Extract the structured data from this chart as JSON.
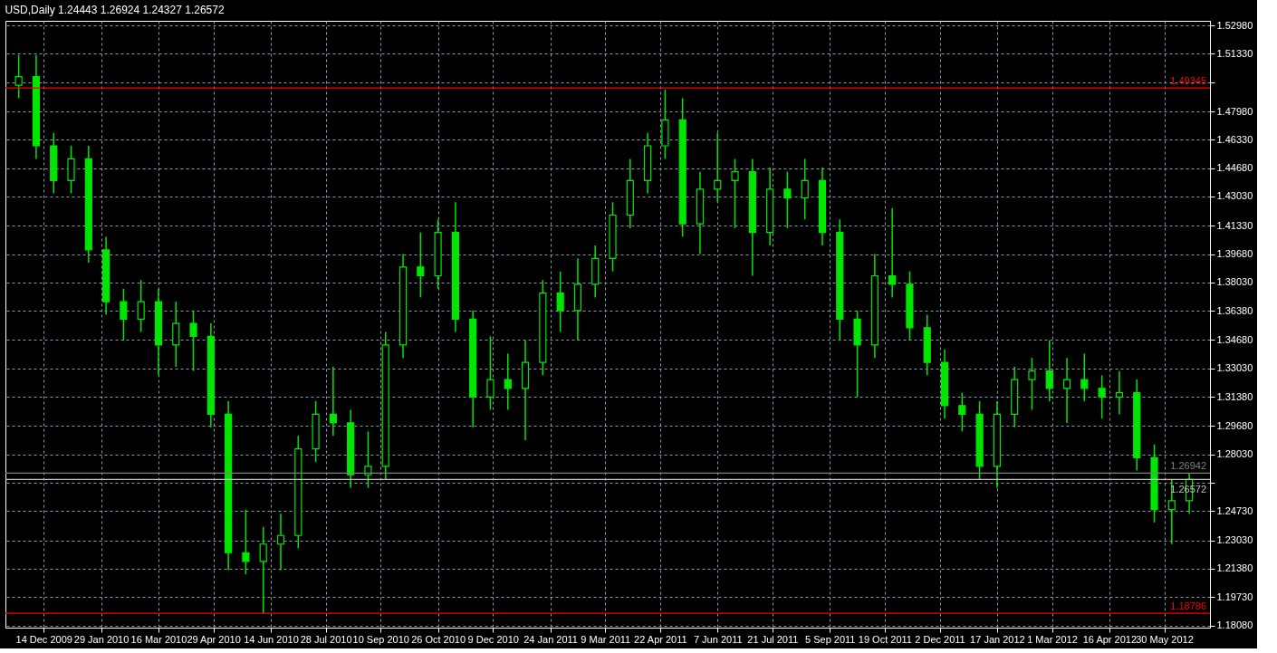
{
  "chart_data": {
    "type": "candlestick",
    "title": "USD,Daily  1.24443 1.26924 1.24327 1.26572",
    "color": "#00e600",
    "grid": true,
    "x": [
      "2009-11-24",
      "2009-12-08",
      "2009-12-22",
      "2010-01-05",
      "2010-01-19",
      "2010-02-02",
      "2010-02-16",
      "2010-03-02",
      "2010-03-16",
      "2010-03-30",
      "2010-04-13",
      "2010-04-27",
      "2010-05-11",
      "2010-05-25",
      "2010-06-08",
      "2010-06-22",
      "2010-07-06",
      "2010-07-20",
      "2010-08-03",
      "2010-08-17",
      "2010-08-31",
      "2010-09-14",
      "2010-09-28",
      "2010-10-12",
      "2010-10-26",
      "2010-11-09",
      "2010-11-23",
      "2010-12-07",
      "2010-12-21",
      "2011-01-04",
      "2011-01-18",
      "2011-02-01",
      "2011-02-15",
      "2011-03-01",
      "2011-03-15",
      "2011-03-29",
      "2011-04-12",
      "2011-04-26",
      "2011-05-10",
      "2011-05-24",
      "2011-06-07",
      "2011-06-21",
      "2011-07-05",
      "2011-07-19",
      "2011-08-02",
      "2011-08-16",
      "2011-08-30",
      "2011-09-13",
      "2011-09-27",
      "2011-10-11",
      "2011-10-25",
      "2011-11-08",
      "2011-11-22",
      "2011-12-06",
      "2011-12-20",
      "2012-01-03",
      "2012-01-17",
      "2012-01-31",
      "2012-02-14",
      "2012-02-28",
      "2012-03-13",
      "2012-03-27",
      "2012-04-10",
      "2012-04-24",
      "2012-05-08",
      "2012-05-22",
      "2012-06-05",
      "2012-06-19"
    ],
    "ohlc": [
      [
        1.495,
        1.5126,
        1.4875,
        1.5
      ],
      [
        1.5,
        1.5126,
        1.4522,
        1.4598
      ],
      [
        1.4598,
        1.4673,
        1.4321,
        1.4396
      ],
      [
        1.4396,
        1.4598,
        1.4321,
        1.4522
      ],
      [
        1.4522,
        1.4598,
        1.3918,
        1.3993
      ],
      [
        1.3993,
        1.4069,
        1.3615,
        1.3691
      ],
      [
        1.3691,
        1.3767,
        1.3465,
        1.359
      ],
      [
        1.359,
        1.3817,
        1.3515,
        1.3691
      ],
      [
        1.3691,
        1.3767,
        1.3263,
        1.3439
      ],
      [
        1.3439,
        1.3691,
        1.3313,
        1.3565
      ],
      [
        1.3565,
        1.364,
        1.3288,
        1.349
      ],
      [
        1.349,
        1.3565,
        1.2961,
        1.3036
      ],
      [
        1.3036,
        1.3112,
        1.213,
        1.2231
      ],
      [
        1.2231,
        1.2482,
        1.2105,
        1.218
      ],
      [
        1.218,
        1.2381,
        1.1878,
        1.2281
      ],
      [
        1.2281,
        1.2457,
        1.213,
        1.2331
      ],
      [
        1.2331,
        1.2911,
        1.2256,
        1.2835
      ],
      [
        1.2835,
        1.3112,
        1.2759,
        1.3036
      ],
      [
        1.3036,
        1.3313,
        1.2911,
        1.2986
      ],
      [
        1.2986,
        1.3062,
        1.2608,
        1.2684
      ],
      [
        1.2684,
        1.2936,
        1.2608,
        1.2734
      ],
      [
        1.2734,
        1.3515,
        1.2659,
        1.3439
      ],
      [
        1.3439,
        1.3968,
        1.3364,
        1.3893
      ],
      [
        1.3893,
        1.4094,
        1.3716,
        1.3842
      ],
      [
        1.3842,
        1.417,
        1.3767,
        1.4094
      ],
      [
        1.4094,
        1.427,
        1.3515,
        1.359
      ],
      [
        1.359,
        1.364,
        1.2961,
        1.3137
      ],
      [
        1.3137,
        1.349,
        1.3062,
        1.3238
      ],
      [
        1.3238,
        1.3389,
        1.3062,
        1.3187
      ],
      [
        1.3187,
        1.3465,
        1.2885,
        1.3338
      ],
      [
        1.3338,
        1.3817,
        1.3263,
        1.3741
      ],
      [
        1.3741,
        1.3867,
        1.3515,
        1.364
      ],
      [
        1.364,
        1.3943,
        1.3465,
        1.3792
      ],
      [
        1.3792,
        1.4018,
        1.3716,
        1.3943
      ],
      [
        1.3943,
        1.427,
        1.3867,
        1.4195
      ],
      [
        1.4195,
        1.4522,
        1.4119,
        1.4396
      ],
      [
        1.4396,
        1.4673,
        1.4321,
        1.4598
      ],
      [
        1.4598,
        1.4925,
        1.4522,
        1.4749
      ],
      [
        1.4749,
        1.4875,
        1.4069,
        1.4144
      ],
      [
        1.4144,
        1.4447,
        1.3968,
        1.4346
      ],
      [
        1.4346,
        1.4673,
        1.427,
        1.4396
      ],
      [
        1.4396,
        1.4522,
        1.4119,
        1.4447
      ],
      [
        1.4447,
        1.4522,
        1.3842,
        1.4094
      ],
      [
        1.4094,
        1.4472,
        1.4018,
        1.4346
      ],
      [
        1.4346,
        1.4447,
        1.4119,
        1.4295
      ],
      [
        1.4295,
        1.4522,
        1.417,
        1.4396
      ],
      [
        1.4396,
        1.4472,
        1.4018,
        1.4094
      ],
      [
        1.4094,
        1.417,
        1.3465,
        1.359
      ],
      [
        1.359,
        1.364,
        1.3137,
        1.3439
      ],
      [
        1.3439,
        1.3968,
        1.3364,
        1.3842
      ],
      [
        1.3842,
        1.4235,
        1.3716,
        1.3792
      ],
      [
        1.3792,
        1.3867,
        1.3465,
        1.354
      ],
      [
        1.354,
        1.3615,
        1.3263,
        1.3338
      ],
      [
        1.3338,
        1.3414,
        1.3011,
        1.3087
      ],
      [
        1.3087,
        1.3162,
        1.2936,
        1.3036
      ],
      [
        1.3036,
        1.3112,
        1.2659,
        1.2734
      ],
      [
        1.2734,
        1.3112,
        1.2608,
        1.3036
      ],
      [
        1.3036,
        1.3313,
        1.2961,
        1.3238
      ],
      [
        1.3238,
        1.3364,
        1.3062,
        1.3288
      ],
      [
        1.3288,
        1.3465,
        1.3112,
        1.3187
      ],
      [
        1.3187,
        1.3364,
        1.2986,
        1.3238
      ],
      [
        1.3238,
        1.3389,
        1.3112,
        1.3187
      ],
      [
        1.3187,
        1.3263,
        1.3011,
        1.3137
      ],
      [
        1.3137,
        1.3288,
        1.3036,
        1.3162
      ],
      [
        1.3162,
        1.3238,
        1.2709,
        1.2784
      ],
      [
        1.2784,
        1.286,
        1.2407,
        1.2482
      ],
      [
        1.2482,
        1.2659,
        1.2281,
        1.2533
      ],
      [
        1.2533,
        1.2694,
        1.2457,
        1.2657
      ]
    ],
    "xlim": [
      "2009-11-17",
      "2012-07-02"
    ],
    "xticks": [
      {
        "value": "2009-12-14",
        "label": "14 Dec 2009"
      },
      {
        "value": "2010-01-29",
        "label": "29 Jan 2010"
      },
      {
        "value": "2010-03-16",
        "label": "16 Mar 2010"
      },
      {
        "value": "2010-04-29",
        "label": "29 Apr 2010"
      },
      {
        "value": "2010-06-14",
        "label": "14 Jun 2010"
      },
      {
        "value": "2010-07-28",
        "label": "28 Jul 2010"
      },
      {
        "value": "2010-09-10",
        "label": "10 Sep 2010"
      },
      {
        "value": "2010-10-26",
        "label": "26 Oct 2010"
      },
      {
        "value": "2010-12-09",
        "label": "9 Dec 2010"
      },
      {
        "value": "2011-01-24",
        "label": "24 Jan 2011"
      },
      {
        "value": "2011-03-09",
        "label": "9 Mar 2011"
      },
      {
        "value": "2011-04-22",
        "label": "22 Apr 2011"
      },
      {
        "value": "2011-06-07",
        "label": "7 Jun 2011"
      },
      {
        "value": "2011-07-21",
        "label": "21 Jul 2011"
      },
      {
        "value": "2011-09-05",
        "label": "5 Sep 2011"
      },
      {
        "value": "2011-10-19",
        "label": "19 Oct 2011"
      },
      {
        "value": "2011-12-02",
        "label": "2 Dec 2011"
      },
      {
        "value": "2012-01-17",
        "label": "17 Jan 2012"
      },
      {
        "value": "2012-03-01",
        "label": "1 Mar 2012"
      },
      {
        "value": "2012-04-16",
        "label": "16 Apr 2012"
      },
      {
        "value": "2012-05-30",
        "label": "30 May 2012"
      }
    ],
    "ylim": [
      1.1795,
      1.5325
    ],
    "yticks": [
      {
        "value": 1.5298,
        "label": "1.52980"
      },
      {
        "value": 1.5133,
        "label": "1.51330"
      },
      {
        "value": 1.4968,
        "label": null
      },
      {
        "value": 1.4798,
        "label": "1.47980"
      },
      {
        "value": 1.4633,
        "label": "1.46330"
      },
      {
        "value": 1.4468,
        "label": "1.44680"
      },
      {
        "value": 1.4303,
        "label": "1.43030"
      },
      {
        "value": 1.4133,
        "label": "1.41330"
      },
      {
        "value": 1.3968,
        "label": "1.39680"
      },
      {
        "value": 1.3803,
        "label": "1.38030"
      },
      {
        "value": 1.3638,
        "label": "1.36380"
      },
      {
        "value": 1.3468,
        "label": "1.34680"
      },
      {
        "value": 1.3303,
        "label": "1.33030"
      },
      {
        "value": 1.3138,
        "label": "1.31380"
      },
      {
        "value": 1.2968,
        "label": "1.29680"
      },
      {
        "value": 1.2803,
        "label": "1.28030"
      },
      {
        "value": 1.2638,
        "label": null
      },
      {
        "value": 1.2473,
        "label": "1.24730"
      },
      {
        "value": 1.2303,
        "label": "1.23030"
      },
      {
        "value": 1.2138,
        "label": "1.21380"
      },
      {
        "value": 1.1973,
        "label": "1.19730"
      },
      {
        "value": 1.1808,
        "label": "1.18080"
      }
    ],
    "ref_lines": [
      {
        "axis": "y",
        "value": 1.49345,
        "label": "1.49345",
        "color": "#ff0000"
      },
      {
        "axis": "y",
        "value": 1.18786,
        "label": "1.18786",
        "color": "#ff0000"
      },
      {
        "axis": "y",
        "value": 1.26942,
        "label": "1.26942",
        "color": "#808080"
      },
      {
        "axis": "y",
        "value": 1.26572,
        "label": "1.26572",
        "color": "#c0c0c0"
      }
    ]
  }
}
